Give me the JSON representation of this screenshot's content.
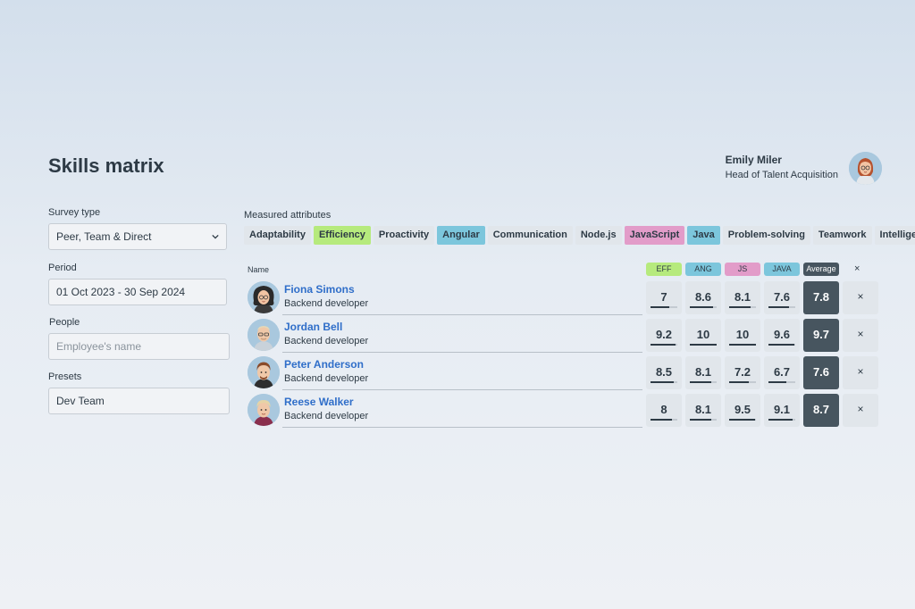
{
  "page": {
    "title": "Skills matrix"
  },
  "user": {
    "name": "Emily Miler",
    "role": "Head of Talent Acquisition"
  },
  "filters": {
    "survey_type": {
      "label": "Survey type",
      "value": "Peer, Team & Direct"
    },
    "period": {
      "label": "Period",
      "value": "01 Oct 2023 - 30 Sep 2024"
    },
    "people": {
      "label": "People",
      "placeholder": "Employee's name"
    },
    "presets": {
      "label": "Presets",
      "value": "Dev Team"
    }
  },
  "attributes": {
    "label": "Measured attributes",
    "items": [
      {
        "label": "Adaptability",
        "color": ""
      },
      {
        "label": "Efficiency",
        "color": "#b6ea7d"
      },
      {
        "label": "Proactivity",
        "color": ""
      },
      {
        "label": "Angular",
        "color": "#7cc6dc"
      },
      {
        "label": "Communication",
        "color": ""
      },
      {
        "label": "Node.js",
        "color": ""
      },
      {
        "label": "JavaScript",
        "color": "#e29cc9"
      },
      {
        "label": "Java",
        "color": "#7cc6dc"
      },
      {
        "label": "Problem-solving",
        "color": ""
      },
      {
        "label": "Teamwork",
        "color": ""
      },
      {
        "label": "Intelligence",
        "color": ""
      }
    ]
  },
  "table": {
    "name_header": "Name",
    "columns": [
      "EFF",
      "ANG",
      "JS",
      "JAVA"
    ],
    "average_header": "Average",
    "remove_glyph": "×",
    "rows": [
      {
        "name": "Fiona Simons",
        "role": "Backend developer",
        "scores": [
          "7",
          "8.6",
          "8.1",
          "7.6"
        ],
        "average": "7.8"
      },
      {
        "name": "Jordan Bell",
        "role": "Backend developer",
        "scores": [
          "9.2",
          "10",
          "10",
          "9.6"
        ],
        "average": "9.7"
      },
      {
        "name": "Peter Anderson",
        "role": "Backend developer",
        "scores": [
          "8.5",
          "8.1",
          "7.2",
          "6.7"
        ],
        "average": "7.6"
      },
      {
        "name": "Reese Walker",
        "role": "Backend developer",
        "scores": [
          "8",
          "8.1",
          "9.5",
          "9.1"
        ],
        "average": "8.7"
      }
    ]
  }
}
